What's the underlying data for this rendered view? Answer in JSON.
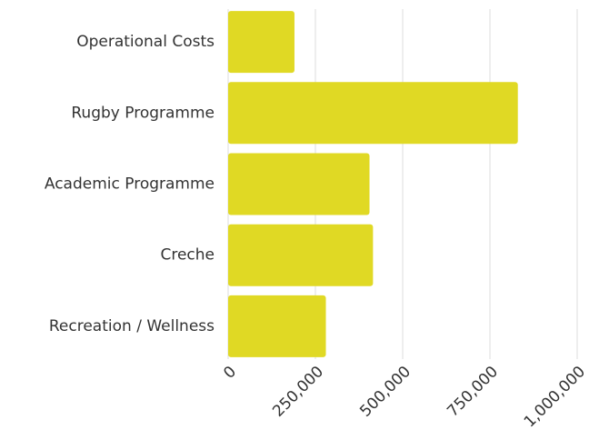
{
  "chart_data": {
    "type": "bar",
    "orientation": "horizontal",
    "categories": [
      "Operational Costs",
      "Rugby Programme",
      "Academic Programme",
      "Creche",
      "Recreation / Wellness"
    ],
    "values": [
      190000,
      830000,
      405000,
      415000,
      280000
    ],
    "color": "#e0d924",
    "xlim": [
      0,
      1000000
    ],
    "xticks": [
      0,
      {
        "value": 250000,
        "label": "250,000"
      },
      {
        "value": 500000,
        "label": "500,000"
      },
      {
        "value": 750000,
        "label": "750,000"
      },
      {
        "value": 1000000,
        "label": "1,000,000"
      }
    ],
    "grid": true
  }
}
